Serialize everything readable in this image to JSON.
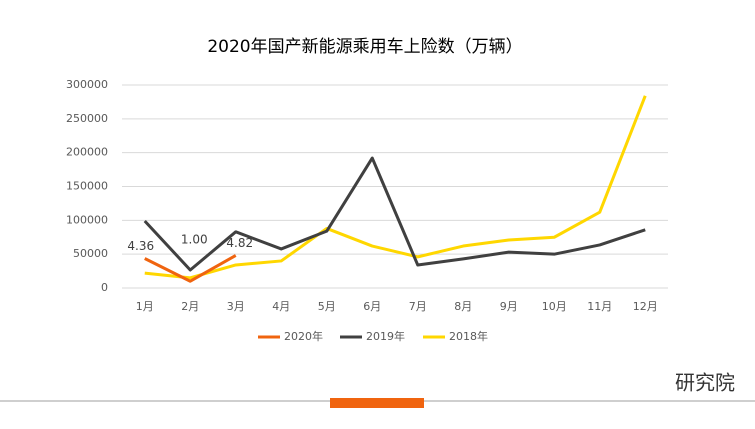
{
  "chart_data": {
    "type": "line",
    "title": "2020年国产新能源乘用车上险数（万辆）",
    "categories": [
      "1月",
      "2月",
      "3月",
      "4月",
      "5月",
      "6月",
      "7月",
      "8月",
      "9月",
      "10月",
      "11月",
      "12月"
    ],
    "series": [
      {
        "name": "2020年",
        "color": "#f0640f",
        "values": [
          43600,
          10000,
          48200,
          null,
          null,
          null,
          null,
          null,
          null,
          null,
          null,
          null
        ],
        "value_labels": [
          "4.36",
          "1.00",
          "4.82",
          null,
          null,
          null,
          null,
          null,
          null,
          null,
          null,
          null
        ]
      },
      {
        "name": "2019年",
        "color": "#404040",
        "values": [
          99000,
          26600,
          83000,
          57700,
          84000,
          192000,
          34000,
          43000,
          53000,
          50000,
          63600,
          86000
        ]
      },
      {
        "name": "2018年",
        "color": "#ffd700",
        "values": [
          22000,
          15000,
          34000,
          40000,
          88000,
          62000,
          46000,
          62000,
          71000,
          75000,
          112000,
          284000
        ]
      }
    ],
    "ylim": [
      0,
      300000
    ],
    "yticks": [
      0,
      50000,
      100000,
      150000,
      200000,
      250000,
      300000
    ],
    "grid": true,
    "legend": "bottom"
  },
  "footer": {
    "brand": "研究院"
  }
}
